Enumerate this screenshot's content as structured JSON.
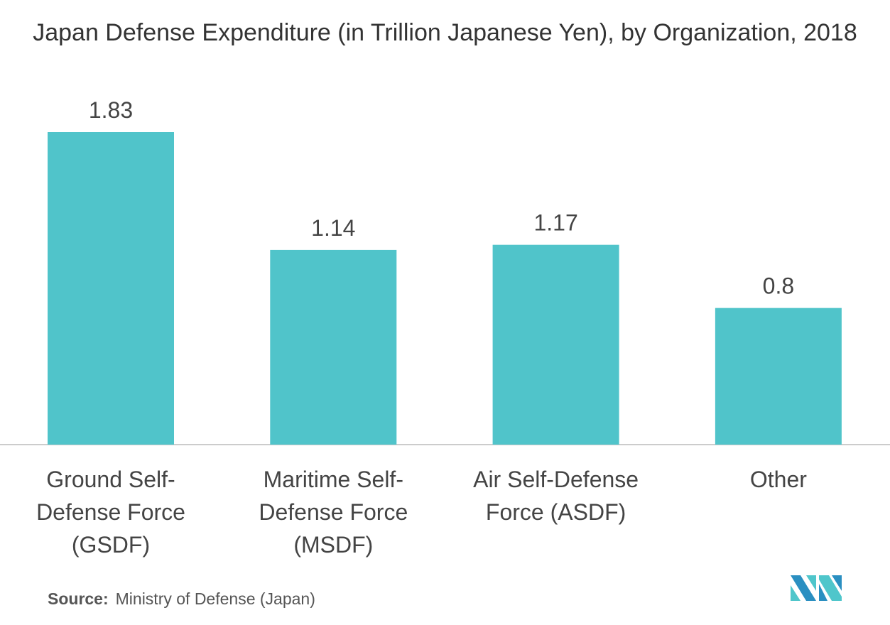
{
  "chart_data": {
    "type": "bar",
    "title": "Japan Defense Expenditure (in Trillion Japanese Yen), by Organization, 2018",
    "categories": [
      "Ground Self-Defense Force (GSDF)",
      "Maritime Self-Defense Force (MSDF)",
      "Air Self-Defense Force (ASDF)",
      "Other"
    ],
    "values": [
      1.83,
      1.14,
      1.17,
      0.8
    ],
    "data_labels": [
      "1.83",
      "1.14",
      "1.17",
      "0.8"
    ],
    "xlabel": "",
    "ylabel": "",
    "ylim": [
      0,
      1.83
    ],
    "grid": false,
    "bar_color": "#50c4ca"
  },
  "source": {
    "label": "Source:",
    "text": "Ministry of Defense (Japan)"
  }
}
